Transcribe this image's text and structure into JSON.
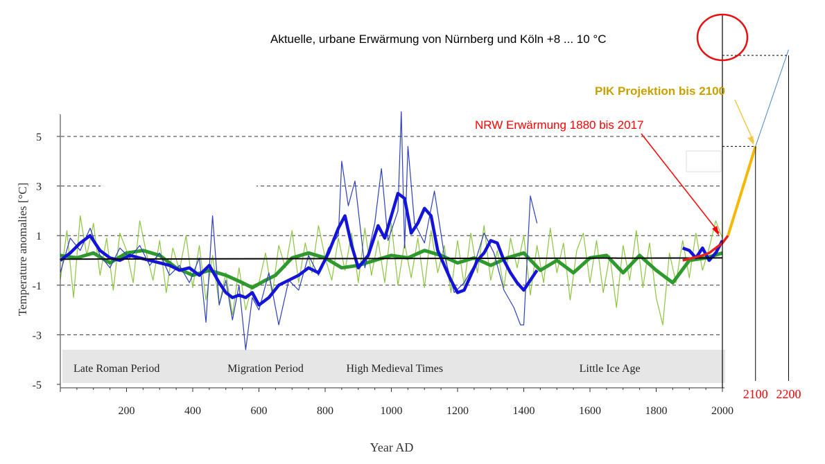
{
  "chart_data": {
    "type": "line",
    "title": "Aktuelle, urbane  Erwärmung von Nürnberg und Köln  +8 ... 10 °C",
    "xlabel": "Year AD",
    "ylabel": "Temperature anomalies [°C]",
    "xlim": [
      0,
      2200
    ],
    "ylim": [
      -5,
      6
    ],
    "y_ticks": [
      5,
      3,
      1,
      -1,
      -3,
      -5
    ],
    "y_tick_labels": [
      "5",
      "3",
      "1",
      "-1",
      "-3",
      "-5"
    ],
    "x_ticks": [
      200,
      400,
      600,
      800,
      1000,
      1200,
      1400,
      1600,
      1800,
      2000
    ],
    "x_tick_labels": [
      "200",
      "400",
      "600",
      "800",
      "1000",
      "1200",
      "1400",
      "1600",
      "1800",
      "2000"
    ],
    "extra_x_tick_labels": [
      {
        "x": 2100,
        "label": "2100",
        "color": "#ff0000"
      },
      {
        "x": 2200,
        "label": "2200",
        "color": "#ff0000"
      }
    ],
    "grid": {
      "style": "dashed",
      "y_values": [
        5,
        3,
        1,
        -1,
        -3
      ]
    },
    "periods": [
      {
        "label": "Late Roman Period",
        "x": 170
      },
      {
        "label": "Migration Period",
        "x": 620
      },
      {
        "label": "High Medieval Times",
        "x": 1010
      },
      {
        "label": "Little Ice Age",
        "x": 1660
      }
    ],
    "annotations": [
      {
        "text": "NRW Erwärmung  1880 bis 2017",
        "color": "#ff0000",
        "target": [
          1990,
          1.0
        ]
      },
      {
        "text": "PIK Projektion bis 2100",
        "color": "#c8a000",
        "target": [
          2095,
          4.6
        ]
      }
    ],
    "series": [
      {
        "name": "Annual reconstruction (light green)",
        "color": "#8cc63f",
        "x": [
          0,
          20,
          40,
          60,
          80,
          100,
          120,
          140,
          160,
          180,
          200,
          220,
          240,
          260,
          280,
          300,
          320,
          340,
          360,
          380,
          400,
          420,
          440,
          460,
          480,
          500,
          520,
          540,
          560,
          580,
          600,
          620,
          640,
          660,
          680,
          700,
          720,
          740,
          760,
          780,
          800,
          820,
          840,
          860,
          880,
          900,
          920,
          940,
          960,
          980,
          1000,
          1020,
          1040,
          1060,
          1080,
          1100,
          1120,
          1140,
          1160,
          1180,
          1200,
          1220,
          1240,
          1260,
          1280,
          1300,
          1320,
          1340,
          1360,
          1380,
          1400,
          1420,
          1440,
          1460,
          1480,
          1500,
          1520,
          1540,
          1560,
          1580,
          1600,
          1620,
          1640,
          1660,
          1680,
          1700,
          1720,
          1740,
          1760,
          1780,
          1800,
          1820,
          1840,
          1860,
          1880,
          1900,
          1920,
          1940,
          1960,
          1980,
          2000
        ],
        "values": [
          -0.8,
          1.2,
          -1.5,
          1.8,
          0.2,
          1.5,
          -0.6,
          0.9,
          -1.2,
          1.1,
          0.4,
          -0.9,
          1.6,
          0.3,
          -0.8,
          0.8,
          -1.3,
          0.5,
          -0.4,
          1.0,
          -1.1,
          0.6,
          -1.6,
          0.2,
          -1.8,
          -0.5,
          -2.2,
          -0.3,
          -2.0,
          -1.0,
          -0.9,
          0.3,
          -1.4,
          0.6,
          -0.3,
          1.2,
          -0.9,
          0.7,
          -0.5,
          1.4,
          0.1,
          -0.8,
          0.9,
          -0.4,
          1.1,
          -0.9,
          1.3,
          -0.6,
          0.8,
          -0.9,
          1.5,
          -1.0,
          0.7,
          -0.7,
          0.9,
          -1.1,
          1.2,
          -0.5,
          0.6,
          -1.3,
          0.8,
          -1.0,
          1.1,
          -0.5,
          1.4,
          -0.8,
          0.4,
          -1.1,
          0.9,
          -0.3,
          1.0,
          -1.4,
          0.6,
          -0.9,
          1.3,
          -0.5,
          0.7,
          -1.6,
          0.4,
          1.1,
          -0.9,
          0.8,
          -1.3,
          0.2,
          -1.9,
          0.6,
          -0.8,
          1.2,
          -1.1,
          0.7,
          -1.5,
          -2.6,
          0.3,
          -0.9,
          0.8,
          -0.7,
          1.1,
          -0.4,
          0.5,
          1.6,
          0.9
        ]
      },
      {
        "name": "Smoothed reconstruction (green)",
        "color": "#2e9a2e",
        "x": [
          0,
          50,
          100,
          150,
          200,
          250,
          300,
          350,
          400,
          450,
          500,
          550,
          580,
          620,
          650,
          700,
          750,
          800,
          850,
          900,
          950,
          1000,
          1050,
          1100,
          1150,
          1200,
          1250,
          1300,
          1350,
          1400,
          1450,
          1500,
          1550,
          1600,
          1650,
          1700,
          1750,
          1800,
          1850,
          1900,
          1950,
          2000
        ],
        "values": [
          0.2,
          0.1,
          0.3,
          -0.1,
          0.3,
          0.4,
          0.2,
          -0.3,
          -0.6,
          -0.4,
          -0.6,
          -0.9,
          -1.1,
          -0.8,
          -0.6,
          0.1,
          0.3,
          0.1,
          -0.3,
          -0.2,
          0.0,
          0.2,
          0.1,
          0.4,
          0.2,
          -0.1,
          0.1,
          -0.2,
          0.1,
          0.3,
          -0.4,
          0.0,
          -0.5,
          0.1,
          0.2,
          -0.5,
          0.2,
          -0.4,
          -0.9,
          0.0,
          0.1,
          0.3
        ]
      },
      {
        "name": "Tree-ring/proxy reconstruction (thin blue)",
        "color": "#2b3fc0",
        "x": [
          0,
          30,
          60,
          90,
          120,
          150,
          180,
          210,
          240,
          270,
          300,
          330,
          360,
          390,
          420,
          440,
          460,
          480,
          500,
          520,
          540,
          560,
          580,
          600,
          630,
          660,
          690,
          720,
          750,
          780,
          810,
          840,
          850,
          870,
          890,
          920,
          950,
          970,
          990,
          1020,
          1030,
          1040,
          1050,
          1070,
          1100,
          1130,
          1160,
          1190,
          1220,
          1250,
          1280,
          1310,
          1340,
          1370,
          1390,
          1400,
          1420,
          1440
        ],
        "values": [
          -0.5,
          0.9,
          0.4,
          1.3,
          0.2,
          -0.3,
          0.5,
          0.1,
          0.6,
          -0.2,
          0.3,
          -0.6,
          -0.2,
          -0.9,
          0.1,
          -2.5,
          1.8,
          -1.8,
          -0.8,
          -2.4,
          -1.0,
          -3.6,
          -1.5,
          -2.0,
          -0.5,
          -2.6,
          -0.8,
          -1.2,
          0.2,
          -0.6,
          0.5,
          1.0,
          4.0,
          2.2,
          3.2,
          -0.3,
          1.5,
          3.7,
          0.8,
          2.0,
          6.0,
          0.5,
          4.6,
          1.5,
          0.7,
          2.8,
          0.2,
          -1.3,
          -0.9,
          -0.2,
          1.1,
          0.3,
          -1.2,
          -1.9,
          -2.6,
          -2.6,
          2.6,
          1.5
        ]
      },
      {
        "name": "Smoothed proxy reconstruction (bold blue)",
        "color": "#1414d8",
        "x": [
          0,
          30,
          60,
          90,
          120,
          150,
          180,
          210,
          240,
          270,
          300,
          330,
          360,
          390,
          420,
          450,
          480,
          500,
          520,
          540,
          560,
          580,
          600,
          630,
          660,
          690,
          720,
          750,
          780,
          810,
          840,
          860,
          880,
          900,
          930,
          960,
          980,
          1000,
          1020,
          1040,
          1060,
          1080,
          1100,
          1120,
          1140,
          1160,
          1180,
          1200,
          1220,
          1240,
          1260,
          1280,
          1300,
          1320,
          1340,
          1360,
          1380,
          1400,
          1420,
          1440
        ],
        "values": [
          0.0,
          0.3,
          0.7,
          1.0,
          0.4,
          0.1,
          0.0,
          0.2,
          0.1,
          0.0,
          -0.1,
          -0.2,
          -0.4,
          -0.3,
          -0.6,
          -0.2,
          -0.9,
          -1.3,
          -1.5,
          -1.4,
          -1.5,
          -1.3,
          -1.8,
          -1.5,
          -1.0,
          -0.8,
          -0.6,
          -0.3,
          -0.5,
          0.3,
          1.3,
          1.8,
          0.6,
          -0.3,
          0.2,
          1.4,
          0.9,
          1.8,
          2.7,
          2.5,
          1.1,
          1.5,
          2.1,
          1.8,
          0.4,
          -0.2,
          -0.8,
          -1.3,
          -1.2,
          -0.6,
          0.0,
          0.3,
          0.8,
          0.7,
          0.0,
          -0.5,
          -0.9,
          -1.2,
          -0.8,
          -0.4
        ]
      },
      {
        "name": "Instrumental (blue, 1880-2000)",
        "color": "#1414d8",
        "x": [
          1880,
          1900,
          1920,
          1940,
          1960,
          1980,
          2000
        ],
        "values": [
          0.5,
          0.4,
          0.1,
          0.5,
          0.0,
          0.3,
          0.8
        ]
      },
      {
        "name": "Long-term mean (black)",
        "color": "#000000",
        "x": [
          0,
          2000
        ],
        "values": [
          0.05,
          0.1
        ]
      },
      {
        "name": "NRW Erwärmung 1880 bis 2017 (red)",
        "color": "#e82020",
        "x": [
          1880,
          1910,
          1940,
          1960,
          1980,
          2000,
          2017
        ],
        "values": [
          0.0,
          0.1,
          0.2,
          0.3,
          0.5,
          0.7,
          1.0
        ]
      },
      {
        "name": "PIK Projektion bis 2100 (yellow)",
        "color": "#f5b800",
        "x": [
          2017,
          2100
        ],
        "values": [
          1.0,
          4.6
        ]
      },
      {
        "name": "Extrapolation bis 2200 (thin blue)",
        "color": "#4488cc",
        "x": [
          2100,
          2200
        ],
        "values": [
          4.6,
          8.5
        ]
      }
    ]
  }
}
